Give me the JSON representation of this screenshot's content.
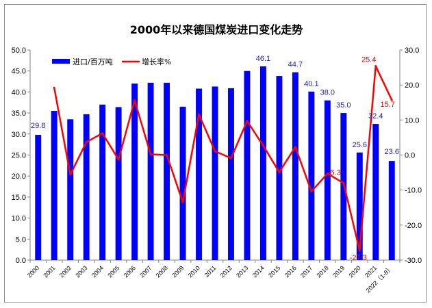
{
  "chart_data": {
    "type": "bar",
    "title": "2000年以来德国煤炭进口变化走势",
    "categories": [
      "2000",
      "2001",
      "2002",
      "2003",
      "2004",
      "2005",
      "2006",
      "2007",
      "2008",
      "2009",
      "2010",
      "2011",
      "2012",
      "2013",
      "2014",
      "2015",
      "2016",
      "2017",
      "2018",
      "2019",
      "2020",
      "2021",
      "2022（1-8）"
    ],
    "series": [
      {
        "name": "进口/百万吨",
        "type": "bar",
        "axis": "left",
        "color": "#0000ff",
        "values": [
          29.8,
          35.5,
          33.5,
          34.7,
          37.0,
          36.4,
          42.0,
          42.2,
          42.2,
          36.5,
          40.8,
          41.3,
          40.9,
          45.0,
          46.1,
          43.8,
          44.7,
          40.1,
          38.0,
          35.0,
          25.6,
          32.4,
          23.6
        ],
        "labels": {
          "0": "29.8",
          "14": "46.1",
          "16": "44.7",
          "17": "40.1",
          "18": "38.0",
          "19": "35.0",
          "20": "25.6",
          "21": "32.4",
          "22": "23.6"
        }
      },
      {
        "name": "增长率%",
        "type": "line",
        "axis": "right",
        "color": "#ff0000",
        "values": [
          null,
          19.2,
          -5.6,
          3.7,
          6.2,
          -1.3,
          15.6,
          0.2,
          0.0,
          -13.5,
          11.6,
          1.1,
          -0.9,
          9.7,
          2.7,
          -4.9,
          2.3,
          -10.4,
          -5.3,
          -8.0,
          -27.3,
          25.4,
          15.7
        ],
        "labels": {
          "18": "-5.3",
          "20": "-27.3",
          "21": "25.4",
          "22": "15.7"
        }
      }
    ],
    "y_left": {
      "range": [
        0,
        50
      ],
      "ticks": [
        "0.0",
        "5.0",
        "10.0",
        "15.0",
        "20.0",
        "25.0",
        "30.0",
        "35.0",
        "40.0",
        "45.0",
        "50.0"
      ]
    },
    "y_right": {
      "range": [
        -30,
        30
      ],
      "ticks": [
        "-30.0",
        "-20.0",
        "-10.0",
        "0.0",
        "10.0",
        "20.0",
        "30.0"
      ]
    },
    "grid": false,
    "legend": "top-left"
  }
}
